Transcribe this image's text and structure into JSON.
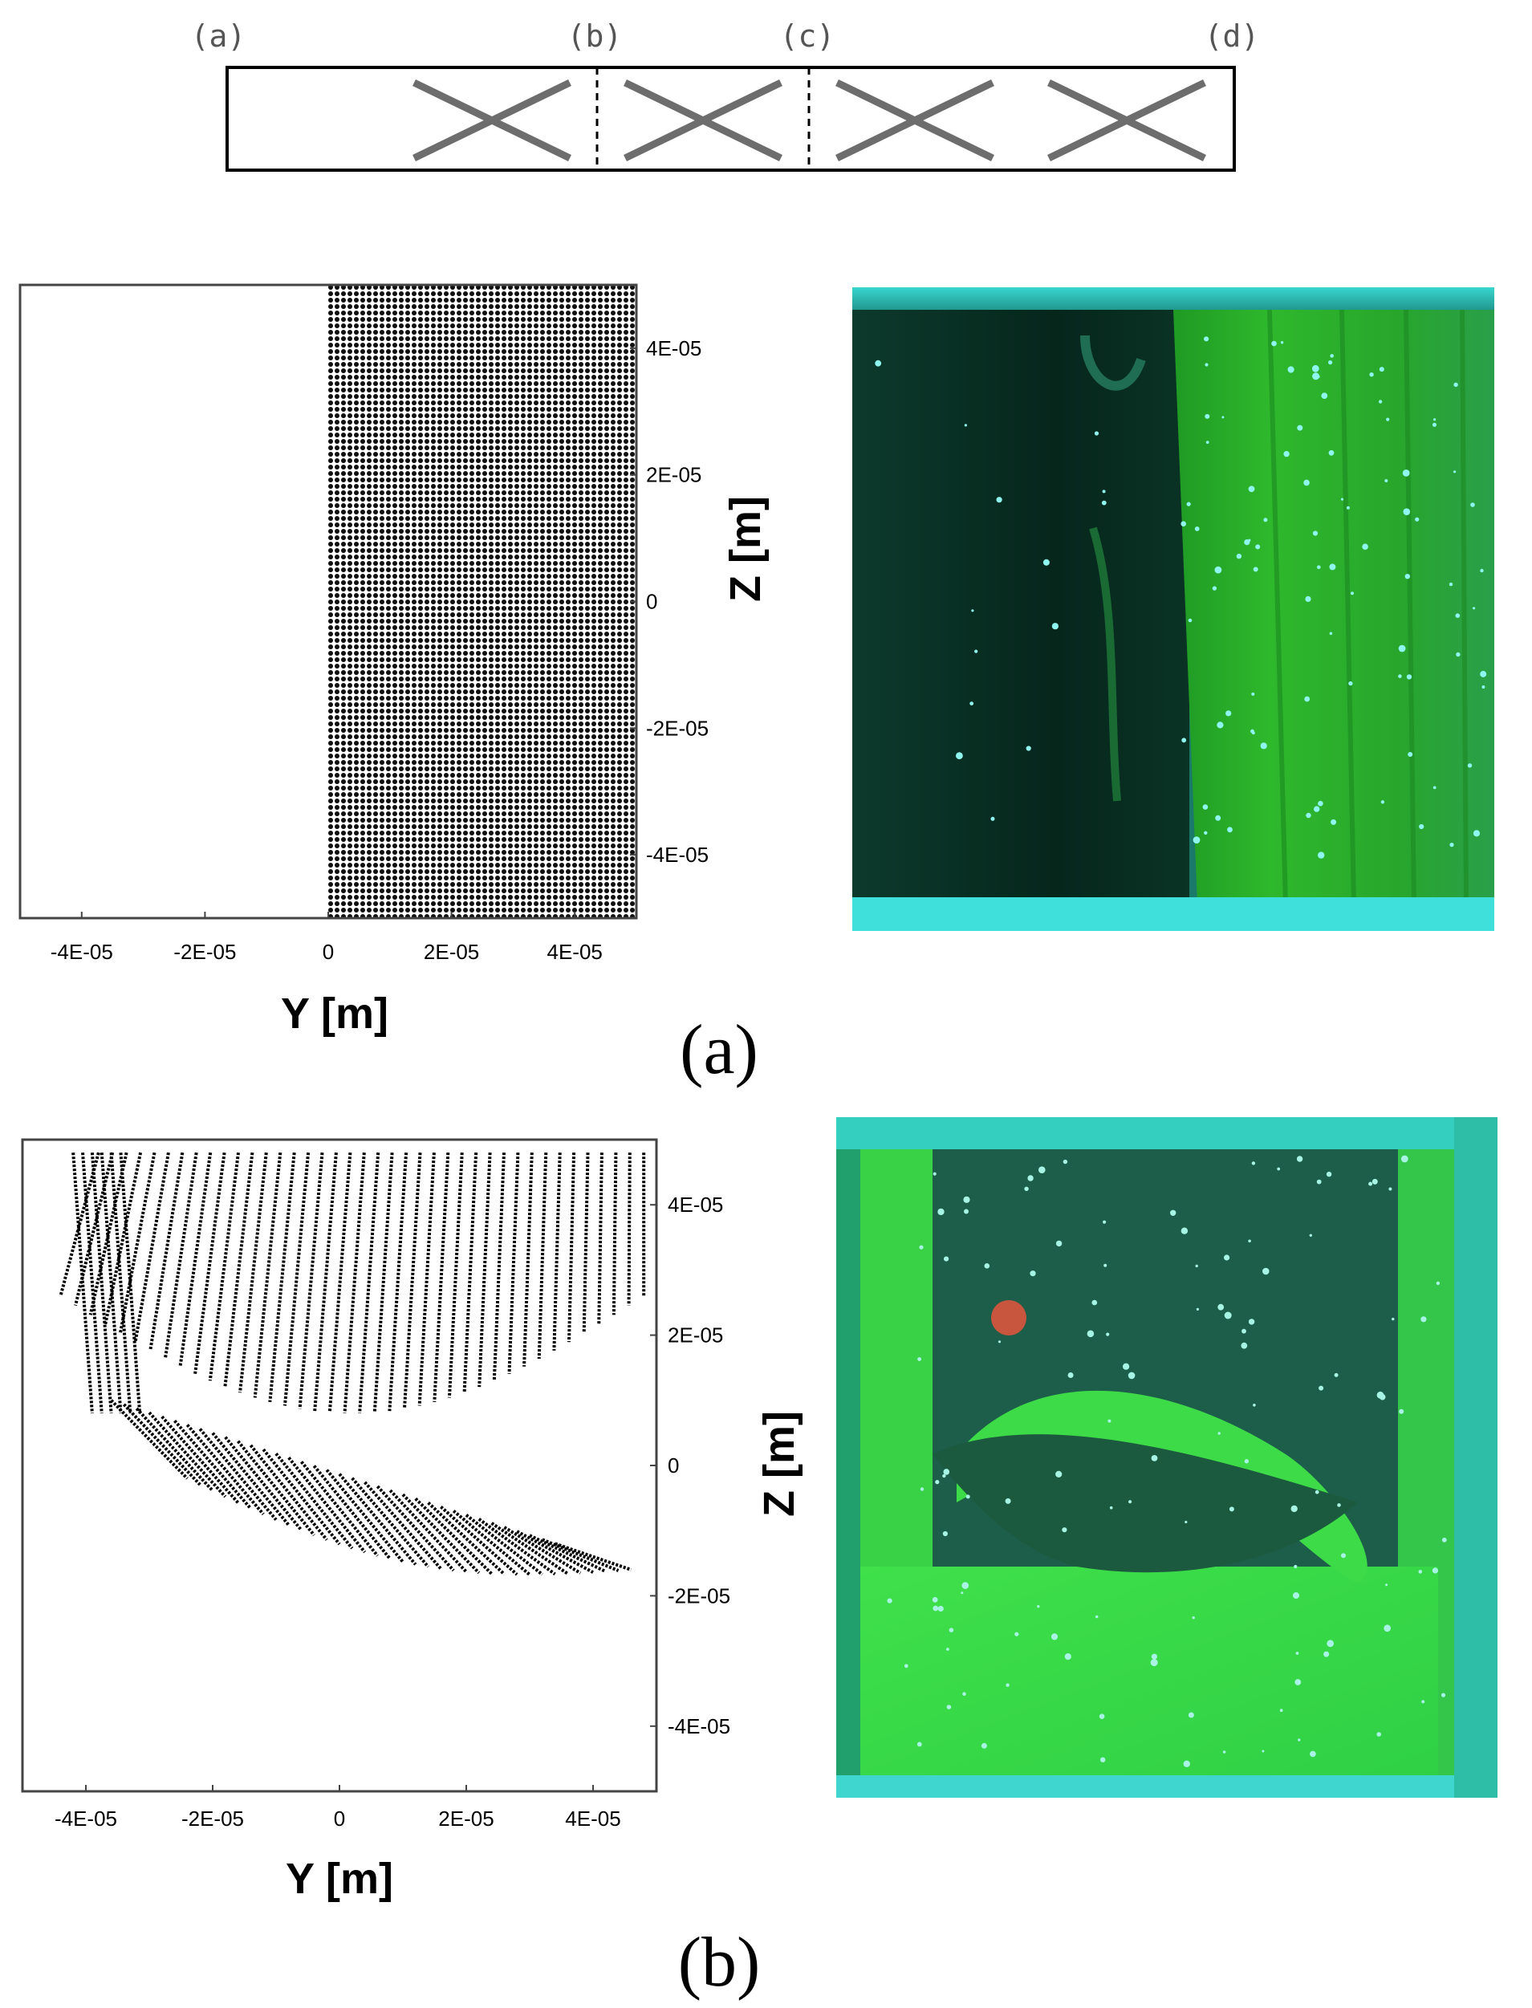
{
  "schematic": {
    "labels": [
      "(a)",
      "(b)",
      "(c)",
      "(d)"
    ]
  },
  "panel_a": {
    "label": "(a)",
    "photo": "micromixer-photo-cyan-green-two-streams"
  },
  "panel_b": {
    "label": "(b)",
    "photo": "micromixer-photo-cyan-green-mixing"
  },
  "chart_data": [
    {
      "type": "scatter",
      "title": "",
      "xlabel": "Y [m]",
      "ylabel": "Z [m]",
      "xlim": [
        -5e-05,
        5e-05
      ],
      "ylim": [
        -5e-05,
        5e-05
      ],
      "xticks": [
        "-4E-05",
        "-2E-05",
        "0",
        "2E-05",
        "4E-05"
      ],
      "xtick_values": [
        -4e-05,
        -2e-05,
        0,
        2e-05,
        4e-05
      ],
      "yticks": [
        "4E-05",
        "2E-05",
        "0",
        "-2E-05",
        "-4E-05"
      ],
      "ytick_values": [
        4e-05,
        2e-05,
        0,
        -2e-05,
        -4e-05
      ],
      "points_region": {
        "y_min": 0,
        "y_max": 5e-05,
        "z_min": -5e-05,
        "z_max": 5e-05,
        "pattern": "uniform-grid"
      },
      "grid": false,
      "legend": "none"
    },
    {
      "type": "scatter",
      "title": "",
      "xlabel": "Y [m]",
      "ylabel": "Z [m]",
      "xlim": [
        -5e-05,
        5e-05
      ],
      "ylim": [
        -5e-05,
        5e-05
      ],
      "xticks": [
        "-4E-05",
        "-2E-05",
        "0",
        "2E-05",
        "4E-05"
      ],
      "xtick_values": [
        -4e-05,
        -2e-05,
        0,
        2e-05,
        4e-05
      ],
      "yticks": [
        "4E-05",
        "2E-05",
        "0",
        "-2E-05",
        "-4E-05"
      ],
      "ytick_values": [
        4e-05,
        2e-05,
        0,
        -2e-05,
        -4e-05
      ],
      "pattern": "folded-striations",
      "grid": false,
      "legend": "none"
    }
  ]
}
